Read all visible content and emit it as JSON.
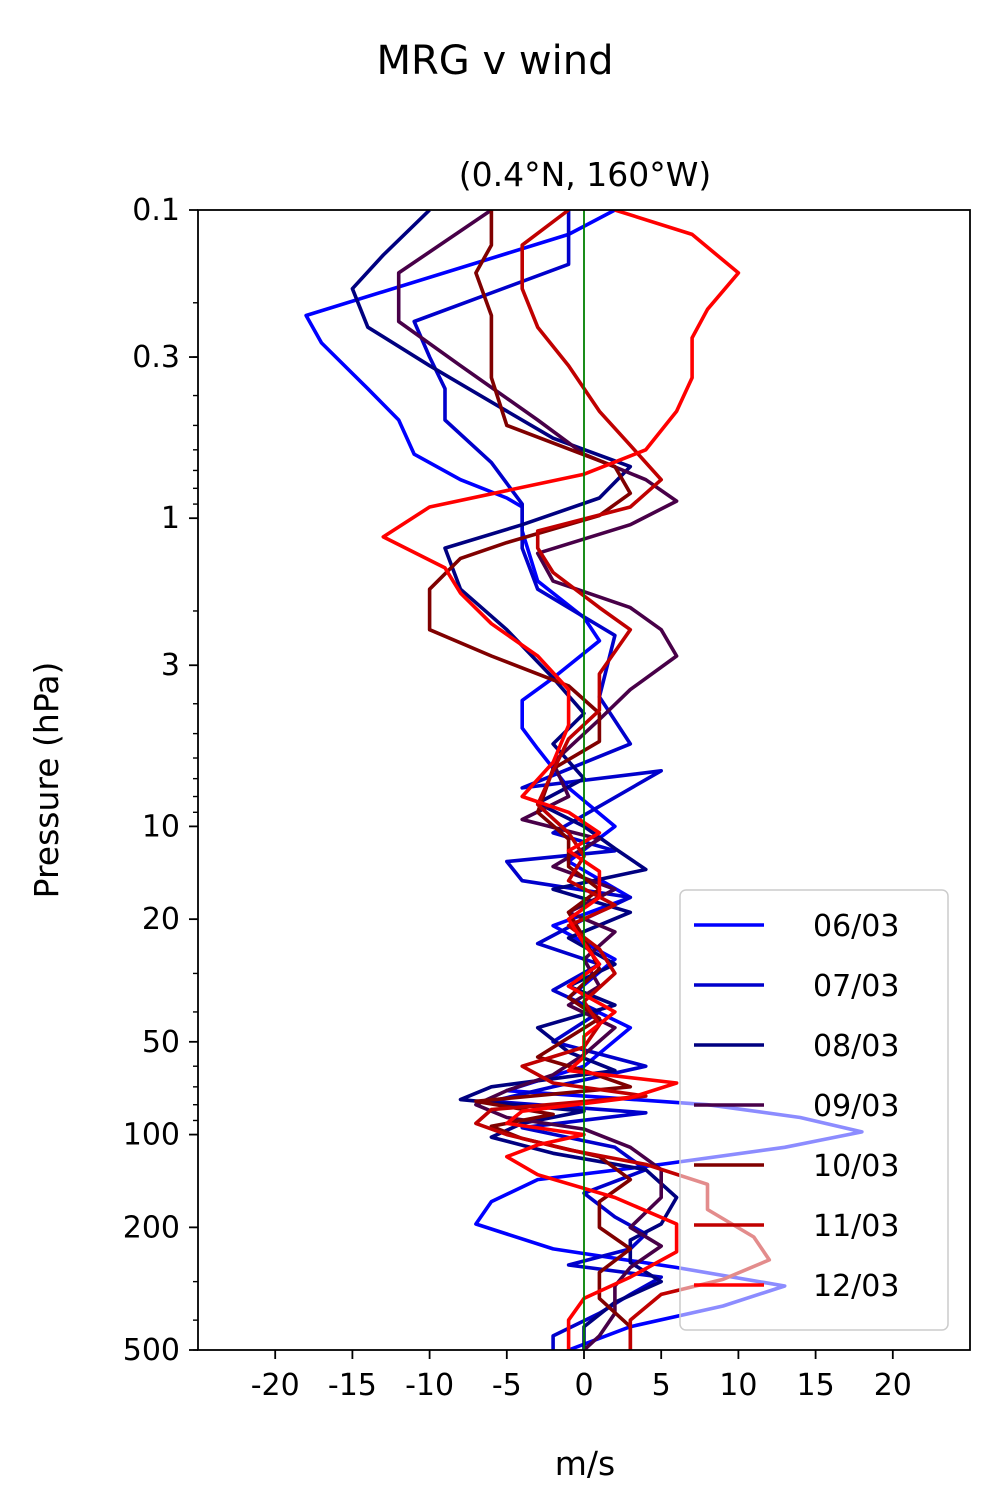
{
  "chart_data": {
    "type": "line",
    "title": "MRG v wind",
    "subtitle": "(0.4°N, 160°W)",
    "xlabel": "m/s",
    "ylabel": "Pressure (hPa)",
    "xlim": [
      -25,
      25
    ],
    "ylim": [
      500,
      0.1
    ],
    "yscale": "log",
    "x_ticks": [
      -20,
      -15,
      -10,
      -5,
      0,
      5,
      10,
      15,
      20
    ],
    "x_tick_labels": [
      "-20",
      "-15",
      "-10",
      "-5",
      "0",
      "5",
      "10",
      "15",
      "20"
    ],
    "y_ticks": [
      0.1,
      0.3,
      1,
      3,
      10,
      20,
      50,
      100,
      200,
      500
    ],
    "y_tick_labels": [
      "0.1",
      "0.3",
      "1",
      "3",
      "10",
      "20",
      "50",
      "100",
      "200",
      "500"
    ],
    "grid": false,
    "legend_position": "lower right",
    "reference_line": {
      "x": 0,
      "color": "#008000"
    },
    "series": [
      {
        "name": "06/03",
        "color": "#0000ff",
        "points": [
          [
            2,
            0.1
          ],
          [
            -1,
            0.12
          ],
          [
            -18,
            0.22
          ],
          [
            -17,
            0.27
          ],
          [
            -14,
            0.38
          ],
          [
            -12,
            0.48
          ],
          [
            -11,
            0.62
          ],
          [
            -8,
            0.75
          ],
          [
            -5,
            0.86
          ],
          [
            -4,
            0.92
          ],
          [
            -4,
            1.1
          ],
          [
            -3,
            1.6
          ],
          [
            0,
            2.1
          ],
          [
            1,
            2.5
          ],
          [
            -2,
            3.3
          ],
          [
            -4,
            3.9
          ],
          [
            -4,
            4.8
          ],
          [
            -3,
            5.6
          ],
          [
            -1,
            7.5
          ],
          [
            2,
            10
          ],
          [
            -1,
            13
          ],
          [
            3,
            17
          ],
          [
            -2,
            21
          ],
          [
            2,
            27
          ],
          [
            -1,
            36
          ],
          [
            3,
            45
          ],
          [
            0,
            60
          ],
          [
            -5,
            72
          ],
          [
            8,
            80
          ],
          [
            14,
            88
          ],
          [
            18,
            98
          ],
          [
            13,
            110
          ],
          [
            5,
            125
          ],
          [
            -3,
            140
          ],
          [
            -6,
            165
          ],
          [
            -7,
            195
          ],
          [
            -2,
            235
          ],
          [
            6,
            270
          ],
          [
            13,
            310
          ],
          [
            9,
            360
          ],
          [
            3,
            420
          ],
          [
            -1,
            500
          ]
        ]
      },
      {
        "name": "07/03",
        "color": "#0000cc",
        "points": [
          [
            -1,
            0.1
          ],
          [
            -1,
            0.15
          ],
          [
            -11,
            0.23
          ],
          [
            -10,
            0.3
          ],
          [
            -9,
            0.38
          ],
          [
            -9,
            0.48
          ],
          [
            -6,
            0.66
          ],
          [
            -4,
            0.9
          ],
          [
            -4,
            1.25
          ],
          [
            -3,
            1.7
          ],
          [
            2,
            2.4
          ],
          [
            1,
            3.8
          ],
          [
            3,
            5.4
          ],
          [
            -4,
            7.5
          ],
          [
            5,
            6.6
          ],
          [
            -2,
            10.5
          ],
          [
            2,
            12
          ],
          [
            -5,
            13
          ],
          [
            -4,
            15
          ],
          [
            3,
            17
          ],
          [
            0,
            20
          ],
          [
            -3,
            24
          ],
          [
            1,
            28
          ],
          [
            -2,
            34
          ],
          [
            1,
            40
          ],
          [
            -2,
            50
          ],
          [
            4,
            60
          ],
          [
            -2,
            70
          ],
          [
            -6,
            78
          ],
          [
            4,
            85
          ],
          [
            -4,
            95
          ],
          [
            2,
            110
          ],
          [
            4,
            130
          ],
          [
            0,
            155
          ],
          [
            2,
            185
          ],
          [
            4,
            210
          ],
          [
            3,
            235
          ],
          [
            -1,
            265
          ],
          [
            5,
            290
          ],
          [
            3,
            330
          ],
          [
            1,
            380
          ],
          [
            -2,
            450
          ],
          [
            -2,
            500
          ]
        ]
      },
      {
        "name": "08/03",
        "color": "#000080",
        "points": [
          [
            -10,
            0.1
          ],
          [
            -13,
            0.14
          ],
          [
            -15,
            0.18
          ],
          [
            -14,
            0.24
          ],
          [
            -10,
            0.32
          ],
          [
            -6,
            0.42
          ],
          [
            -2,
            0.55
          ],
          [
            3,
            0.68
          ],
          [
            1,
            0.86
          ],
          [
            -4,
            1.05
          ],
          [
            -9,
            1.25
          ],
          [
            -8,
            1.7
          ],
          [
            -5,
            2.3
          ],
          [
            -2,
            3.3
          ],
          [
            0,
            4.3
          ],
          [
            -2,
            5.4
          ],
          [
            0,
            7
          ],
          [
            -3,
            8.4
          ],
          [
            0,
            10
          ],
          [
            2,
            11.8
          ],
          [
            4,
            13.8
          ],
          [
            -2,
            16
          ],
          [
            3,
            19
          ],
          [
            -1,
            23
          ],
          [
            2,
            28
          ],
          [
            -1,
            33
          ],
          [
            2,
            38
          ],
          [
            -3,
            45
          ],
          [
            -1,
            54
          ],
          [
            2,
            62
          ],
          [
            -6,
            70
          ],
          [
            -8,
            77
          ],
          [
            0,
            84
          ],
          [
            -4,
            92
          ],
          [
            -6,
            102
          ],
          [
            -2,
            115
          ],
          [
            4,
            130
          ],
          [
            6,
            160
          ],
          [
            5,
            195
          ],
          [
            3,
            220
          ],
          [
            3,
            260
          ],
          [
            5,
            300
          ],
          [
            2,
            350
          ],
          [
            0,
            420
          ],
          [
            0,
            500
          ]
        ]
      },
      {
        "name": "09/03",
        "color": "#480048",
        "points": [
          [
            -6,
            0.1
          ],
          [
            -12,
            0.16
          ],
          [
            -12,
            0.23
          ],
          [
            -8,
            0.32
          ],
          [
            -3,
            0.48
          ],
          [
            0,
            0.62
          ],
          [
            4,
            0.75
          ],
          [
            6,
            0.88
          ],
          [
            3,
            1.05
          ],
          [
            -3,
            1.3
          ],
          [
            -2,
            1.6
          ],
          [
            3,
            1.95
          ],
          [
            5,
            2.3
          ],
          [
            6,
            2.8
          ],
          [
            3,
            3.6
          ],
          [
            1,
            4.5
          ],
          [
            -2,
            6.2
          ],
          [
            -1,
            8
          ],
          [
            -4,
            9.5
          ],
          [
            1,
            11
          ],
          [
            -2,
            13.5
          ],
          [
            2,
            16
          ],
          [
            -1,
            19
          ],
          [
            2,
            22
          ],
          [
            0,
            27
          ],
          [
            1,
            33
          ],
          [
            -1,
            38
          ],
          [
            2,
            45
          ],
          [
            0,
            55
          ],
          [
            -2,
            64
          ],
          [
            -5,
            72
          ],
          [
            -7,
            80
          ],
          [
            -5,
            88
          ],
          [
            0,
            96
          ],
          [
            3,
            110
          ],
          [
            5,
            130
          ],
          [
            5,
            160
          ],
          [
            3,
            200
          ],
          [
            5,
            230
          ],
          [
            3,
            270
          ],
          [
            2,
            310
          ],
          [
            2,
            380
          ],
          [
            1,
            450
          ],
          [
            0,
            500
          ]
        ]
      },
      {
        "name": "10/03",
        "color": "#800000",
        "points": [
          [
            -6,
            0.1
          ],
          [
            -6,
            0.13
          ],
          [
            -7,
            0.16
          ],
          [
            -6,
            0.22
          ],
          [
            -6,
            0.35
          ],
          [
            -5,
            0.5
          ],
          [
            2,
            0.68
          ],
          [
            3,
            0.83
          ],
          [
            1,
            0.98
          ],
          [
            -5,
            1.2
          ],
          [
            -8,
            1.35
          ],
          [
            -10,
            1.7
          ],
          [
            -10,
            2.3
          ],
          [
            -6,
            2.8
          ],
          [
            -1,
            3.5
          ],
          [
            1,
            4.3
          ],
          [
            1,
            5.3
          ],
          [
            -2,
            6.5
          ],
          [
            -3,
            9
          ],
          [
            -1,
            11
          ],
          [
            -1,
            13.5
          ],
          [
            1,
            16
          ],
          [
            -1,
            19
          ],
          [
            0,
            23
          ],
          [
            1,
            29
          ],
          [
            -1,
            36
          ],
          [
            1,
            42
          ],
          [
            -3,
            56
          ],
          [
            0,
            62
          ],
          [
            3,
            70
          ],
          [
            -7,
            78
          ],
          [
            -2,
            86
          ],
          [
            -6,
            94
          ],
          [
            -4,
            103
          ],
          [
            1,
            118
          ],
          [
            3,
            140
          ],
          [
            1,
            165
          ],
          [
            1,
            200
          ],
          [
            3,
            235
          ],
          [
            1,
            280
          ],
          [
            1,
            340
          ],
          [
            3,
            420
          ],
          [
            3,
            500
          ]
        ]
      },
      {
        "name": "11/03",
        "color": "#c00000",
        "points": [
          [
            -1,
            0.1
          ],
          [
            -4,
            0.13
          ],
          [
            -4,
            0.18
          ],
          [
            -3,
            0.24
          ],
          [
            -1,
            0.32
          ],
          [
            1,
            0.45
          ],
          [
            3,
            0.58
          ],
          [
            5,
            0.75
          ],
          [
            3,
            0.92
          ],
          [
            -3,
            1.1
          ],
          [
            -3,
            1.25
          ],
          [
            -2,
            1.5
          ],
          [
            1,
            1.95
          ],
          [
            3,
            2.3
          ],
          [
            1,
            3.2
          ],
          [
            1,
            4.2
          ],
          [
            -1,
            5.2
          ],
          [
            -2,
            6.6
          ],
          [
            -3,
            8.5
          ],
          [
            -1,
            10.5
          ],
          [
            0,
            12.5
          ],
          [
            -1,
            15
          ],
          [
            2,
            18
          ],
          [
            -1,
            21
          ],
          [
            1,
            25
          ],
          [
            2,
            30
          ],
          [
            0,
            37
          ],
          [
            1,
            44
          ],
          [
            0,
            52
          ],
          [
            -4,
            60
          ],
          [
            -2,
            68
          ],
          [
            4,
            75
          ],
          [
            -6,
            83
          ],
          [
            -7,
            92
          ],
          [
            -5,
            100
          ],
          [
            -1,
            112
          ],
          [
            4,
            125
          ],
          [
            8,
            145
          ],
          [
            8,
            175
          ],
          [
            11,
            215
          ],
          [
            12,
            255
          ],
          [
            9,
            295
          ],
          [
            5,
            330
          ],
          [
            3,
            400
          ],
          [
            3,
            500
          ]
        ]
      },
      {
        "name": "12/03",
        "color": "#ff0000",
        "points": [
          [
            2,
            0.1
          ],
          [
            7,
            0.12
          ],
          [
            10,
            0.16
          ],
          [
            8,
            0.21
          ],
          [
            7,
            0.26
          ],
          [
            7,
            0.35
          ],
          [
            6,
            0.45
          ],
          [
            4,
            0.6
          ],
          [
            0,
            0.72
          ],
          [
            -10,
            0.92
          ],
          [
            -13,
            1.15
          ],
          [
            -9,
            1.45
          ],
          [
            -8,
            1.75
          ],
          [
            -6,
            2.2
          ],
          [
            -3,
            2.8
          ],
          [
            -1,
            3.6
          ],
          [
            -1,
            4.7
          ],
          [
            -2,
            6.2
          ],
          [
            -4,
            8
          ],
          [
            -1,
            9
          ],
          [
            1,
            10.5
          ],
          [
            -1,
            12
          ],
          [
            1,
            14
          ],
          [
            1,
            17
          ],
          [
            -1,
            20
          ],
          [
            0,
            24
          ],
          [
            1,
            28
          ],
          [
            -1,
            33
          ],
          [
            2,
            40
          ],
          [
            0,
            48
          ],
          [
            0,
            56
          ],
          [
            -1,
            62
          ],
          [
            6,
            68
          ],
          [
            3,
            76
          ],
          [
            -4,
            84
          ],
          [
            -5,
            92
          ],
          [
            0,
            100
          ],
          [
            -3,
            108
          ],
          [
            -5,
            118
          ],
          [
            -3,
            135
          ],
          [
            2,
            160
          ],
          [
            6,
            195
          ],
          [
            6,
            240
          ],
          [
            3,
            290
          ],
          [
            0,
            340
          ],
          [
            -1,
            400
          ],
          [
            -1,
            500
          ]
        ]
      }
    ]
  }
}
